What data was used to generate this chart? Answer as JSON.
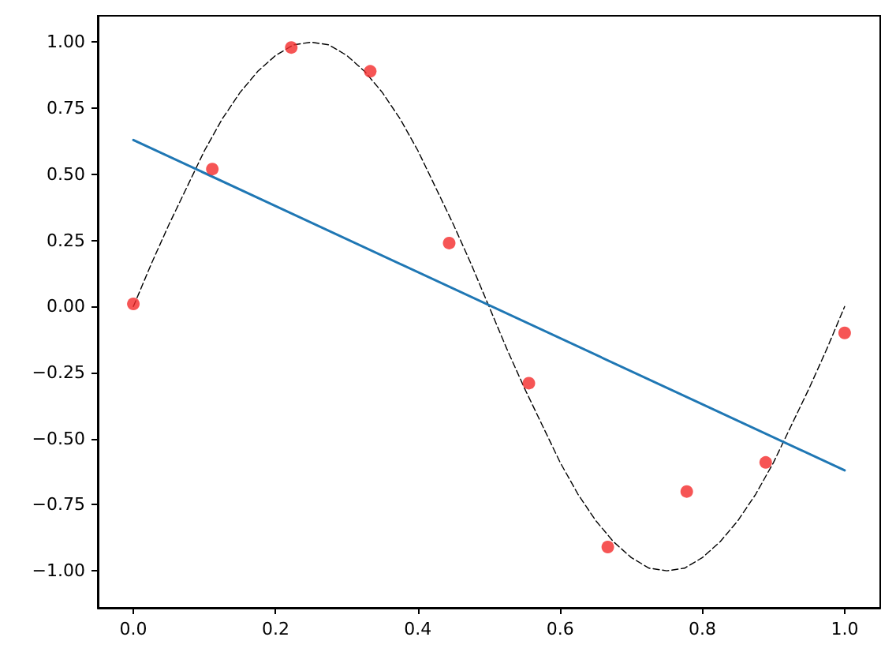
{
  "chart_data": {
    "type": "scatter",
    "grid": false,
    "xlim": [
      -0.05,
      1.05
    ],
    "xticks": [
      {
        "value": 0,
        "label": "0.0"
      },
      {
        "value": 0.2,
        "label": "0.2"
      },
      {
        "value": 0.4,
        "label": "0.4"
      },
      {
        "value": 0.6,
        "label": "0.6"
      },
      {
        "value": 0.8,
        "label": "0.8"
      },
      {
        "value": 1,
        "label": "1.0"
      }
    ],
    "ylim": [
      -1.14,
      1.1
    ],
    "yticks": [
      {
        "value": -1,
        "label": "−1.00"
      },
      {
        "value": -0.75,
        "label": "−0.75"
      },
      {
        "value": -0.5,
        "label": "−0.50"
      },
      {
        "value": -0.25,
        "label": "−0.25"
      },
      {
        "value": 0,
        "label": "0.00"
      },
      {
        "value": 0.25,
        "label": "0.25"
      },
      {
        "value": 0.5,
        "label": "0.50"
      },
      {
        "value": 0.75,
        "label": "0.75"
      },
      {
        "value": 1,
        "label": "1.00"
      }
    ],
    "series": [
      {
        "type": "line",
        "color": "#000000",
        "line_style": "dashed",
        "marker": "none",
        "x": [
          0,
          0.025,
          0.05,
          0.075,
          0.1,
          0.125,
          0.15,
          0.175,
          0.2,
          0.225,
          0.25,
          0.275,
          0.3,
          0.325,
          0.35,
          0.375,
          0.4,
          0.425,
          0.45,
          0.475,
          0.5,
          0.525,
          0.55,
          0.575,
          0.6,
          0.625,
          0.65,
          0.675,
          0.7,
          0.725,
          0.75,
          0.775,
          0.8,
          0.825,
          0.85,
          0.875,
          0.9,
          0.925,
          0.95,
          0.975,
          1
        ],
        "values": [
          0,
          0.16,
          0.31,
          0.45,
          0.59,
          0.71,
          0.81,
          0.89,
          0.95,
          0.99,
          1,
          0.99,
          0.95,
          0.89,
          0.81,
          0.71,
          0.59,
          0.45,
          0.31,
          0.16,
          0,
          -0.16,
          -0.31,
          -0.45,
          -0.59,
          -0.71,
          -0.81,
          -0.89,
          -0.95,
          -0.99,
          -1,
          -0.99,
          -0.95,
          -0.89,
          -0.81,
          -0.71,
          -0.59,
          -0.45,
          -0.31,
          -0.16,
          0
        ]
      },
      {
        "color": "#f42a2a",
        "marker": "circle",
        "x": [
          0,
          0.111,
          0.222,
          0.333,
          0.444,
          0.556,
          0.667,
          0.778,
          0.889,
          1
        ],
        "values": [
          0.01,
          0.52,
          0.98,
          0.89,
          0.24,
          -0.29,
          -0.91,
          -0.7,
          -0.59,
          -0.1
        ]
      },
      {
        "type": "line",
        "color": "#1f77b4",
        "line_style": "solid",
        "marker": "none",
        "x": [
          0,
          1
        ],
        "values": [
          0.63,
          -0.62
        ]
      }
    ]
  }
}
